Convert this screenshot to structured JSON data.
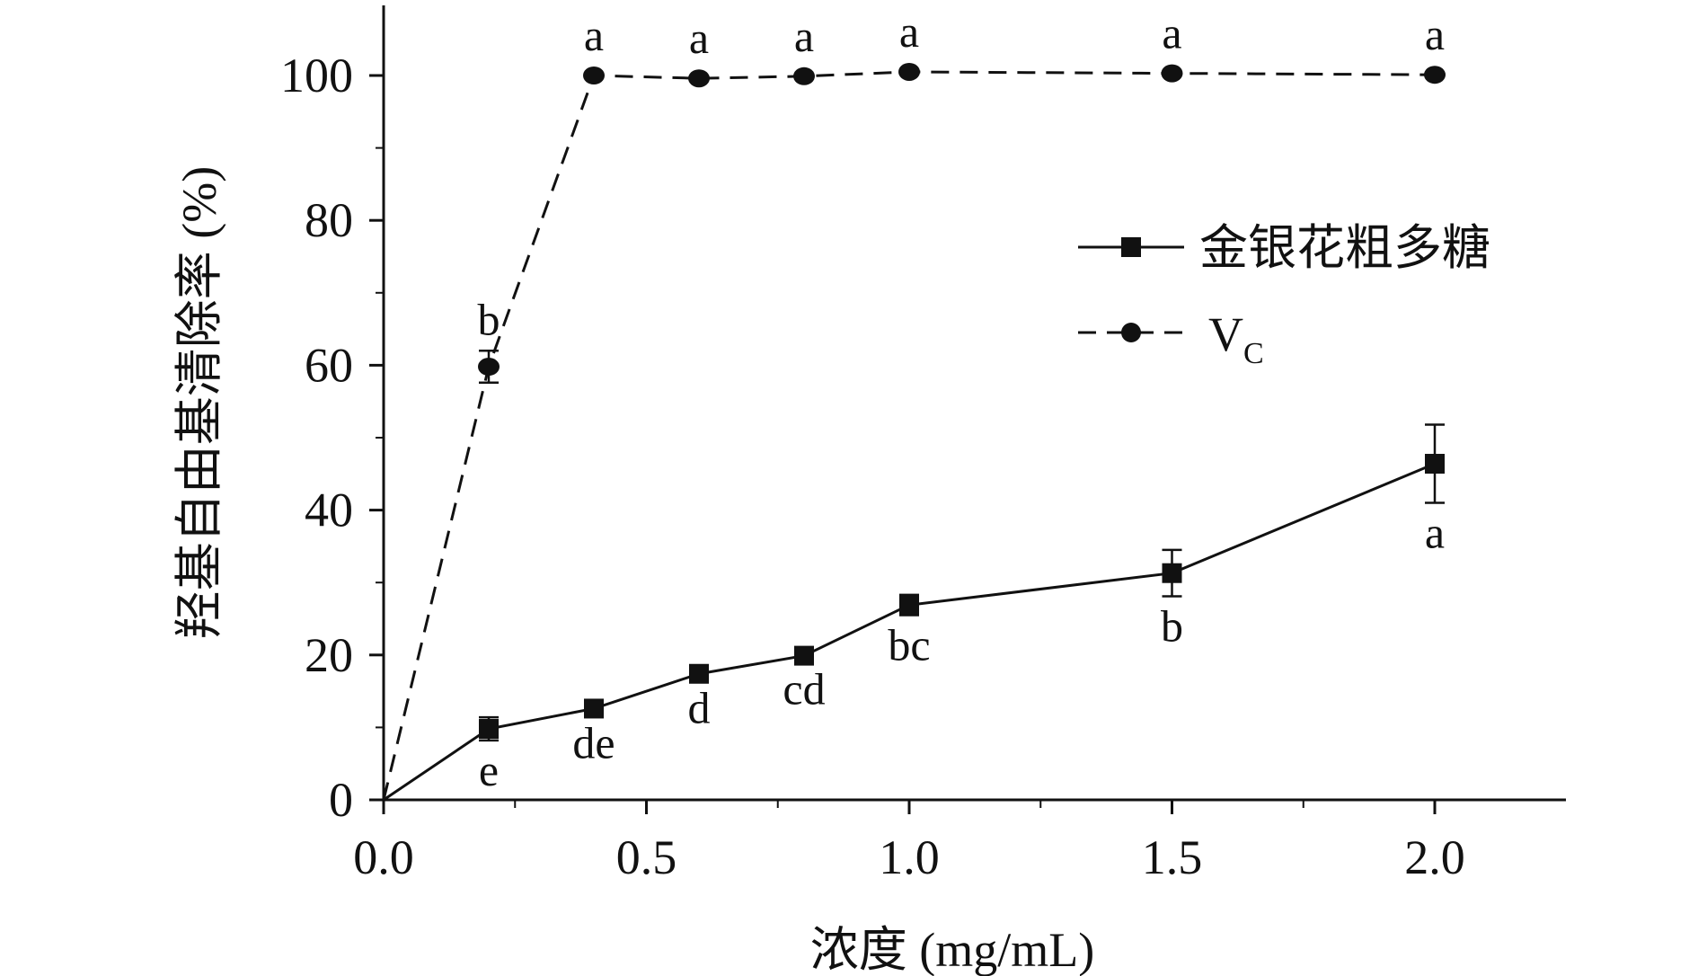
{
  "chart_data": {
    "type": "line",
    "xlabel": "浓度 (mg/mL)",
    "ylabel": "羟基自由基清除率 (%)",
    "xlim": [
      0,
      2.25
    ],
    "ylim": [
      0,
      110
    ],
    "xticks": [
      0.0,
      0.5,
      1.0,
      1.5,
      2.0
    ],
    "xtick_labels": [
      "0.0",
      "0.5",
      "1.0",
      "1.5",
      "2.0"
    ],
    "yticks": [
      0,
      20,
      40,
      60,
      80,
      100
    ],
    "ytick_labels": [
      "0",
      "20",
      "40",
      "60",
      "80",
      "100"
    ],
    "grid": false,
    "legend_position": "right",
    "series": [
      {
        "name": "金银花粗多糖",
        "line_style": "solid",
        "marker": "square",
        "points": [
          {
            "x": 0.0,
            "y": 0.0,
            "err": 0,
            "label": ""
          },
          {
            "x": 0.2,
            "y": 9.8,
            "err": 1.6,
            "label": "e"
          },
          {
            "x": 0.4,
            "y": 12.6,
            "err": 0.6,
            "label": "de"
          },
          {
            "x": 0.6,
            "y": 17.4,
            "err": 0.6,
            "label": "d"
          },
          {
            "x": 0.8,
            "y": 19.9,
            "err": 0.5,
            "label": "cd"
          },
          {
            "x": 1.0,
            "y": 26.9,
            "err": 1.4,
            "label": "bc"
          },
          {
            "x": 1.5,
            "y": 31.3,
            "err": 3.2,
            "label": "b"
          },
          {
            "x": 2.0,
            "y": 46.4,
            "err": 5.4,
            "label": "a"
          }
        ]
      },
      {
        "name": "V",
        "name_subscript": "C",
        "line_style": "dashed",
        "marker": "circle",
        "points": [
          {
            "x": 0.0,
            "y": 0.0,
            "err": 0,
            "label": ""
          },
          {
            "x": 0.2,
            "y": 59.8,
            "err": 2.2,
            "label": "b"
          },
          {
            "x": 0.4,
            "y": 100.0,
            "err": 0,
            "label": "a"
          },
          {
            "x": 0.6,
            "y": 99.6,
            "err": 0,
            "label": "a"
          },
          {
            "x": 0.8,
            "y": 99.9,
            "err": 0,
            "label": "a"
          },
          {
            "x": 1.0,
            "y": 100.5,
            "err": 0,
            "label": "a"
          },
          {
            "x": 1.5,
            "y": 100.3,
            "err": 0,
            "label": "a"
          },
          {
            "x": 2.0,
            "y": 100.1,
            "err": 0,
            "label": "a"
          }
        ]
      }
    ]
  }
}
